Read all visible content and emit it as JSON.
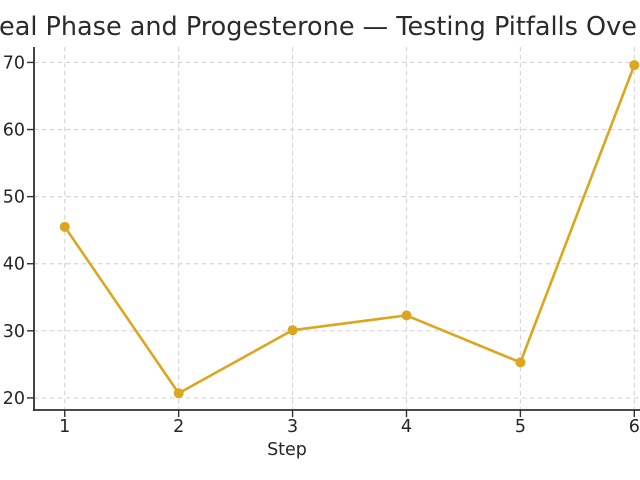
{
  "chart_data": {
    "type": "line",
    "title": "eal Phase and Progesterone — Testing Pitfalls Ove",
    "xlabel": "Step",
    "ylabel": "",
    "x": [
      1,
      2,
      3,
      4,
      5,
      6
    ],
    "values": [
      45.5,
      20.7,
      30.1,
      32.3,
      25.3,
      69.6
    ],
    "xticks": [
      1,
      2,
      3,
      4,
      5,
      6
    ],
    "yticks": [
      20,
      30,
      40,
      50,
      60,
      70
    ],
    "xlim": [
      0.73,
      6.05
    ],
    "ylim": [
      18.2,
      72.3
    ],
    "grid": true,
    "grid_linestyle": "dashed",
    "legend": false,
    "marker": "circle"
  },
  "colors": {
    "line": "#DCA61E",
    "marker": "#DCA61E",
    "grid": "#d6d6d6",
    "spine": "#303030",
    "tick_text": "#262626",
    "title_text": "#2b2b2b",
    "background": "#ffffff"
  }
}
